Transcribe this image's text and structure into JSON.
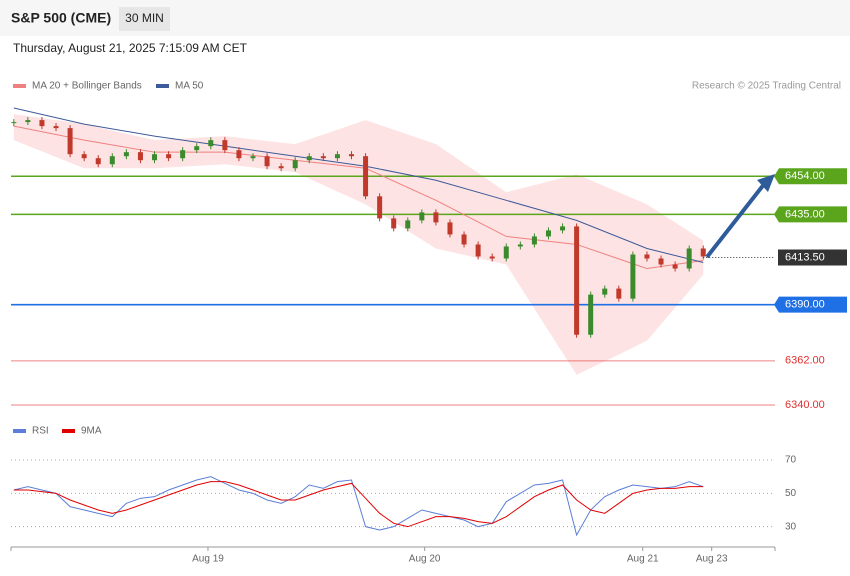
{
  "chart_data": {
    "type": "candlestick",
    "title": "S&P 500 (CME)",
    "interval": "30 MIN",
    "subtitle": "Thursday, August 21, 2025 7:15:09 AM CET",
    "credit": "Research © 2025 Trading Central",
    "x": [
      0,
      1,
      2,
      3,
      4,
      5,
      6,
      7,
      8,
      9,
      10,
      11,
      12,
      13,
      14,
      15,
      16,
      17,
      18,
      19,
      20,
      21,
      22,
      23,
      24,
      25,
      26,
      27,
      28,
      29,
      30,
      31,
      32,
      33,
      34,
      35,
      36,
      37,
      38,
      39,
      40,
      41,
      42,
      43,
      44,
      45,
      46,
      47,
      48,
      49
    ],
    "close": [
      6481,
      6482,
      6479,
      6478,
      6465,
      6463,
      6460,
      6464,
      6466,
      6462,
      6465,
      6463,
      6467,
      6469,
      6472,
      6467,
      6463,
      6464,
      6459,
      6458,
      6462,
      6464,
      6463,
      6465,
      6464,
      6444,
      6433,
      6428,
      6432,
      6436,
      6431,
      6425,
      6420,
      6414,
      6413,
      6419,
      6420,
      6424,
      6427,
      6429,
      6375,
      6395,
      6398,
      6393,
      6415,
      6413,
      6410,
      6408,
      6418,
      6414
    ],
    "up_color": "#3c8a2e",
    "down_color": "#c0392b",
    "xlim": [
      -0.2,
      54.1
    ],
    "xticks": [
      {
        "value": 13.8,
        "label": "Aug 19"
      },
      {
        "value": 29.2,
        "label": "Aug 20"
      },
      {
        "value": 44.7,
        "label": "Aug 21"
      },
      {
        "value": 49.6,
        "label": "Aug 23"
      }
    ],
    "ylim": [
      6332,
      6496
    ],
    "overlays": [
      {
        "name": "MA 20 + Bollinger Bands",
        "color": "#f08080",
        "band_color": "#fde3e3",
        "x": [
          0,
          5,
          10,
          15,
          20,
          25,
          30,
          35,
          40,
          45,
          49
        ],
        "values": [
          6479,
          6472,
          6466,
          6466,
          6462,
          6458,
          6442,
          6424,
          6420,
          6408,
          6412
        ],
        "upper": [
          6485,
          6480,
          6472,
          6474,
          6470,
          6482,
          6470,
          6446,
          6455,
          6440,
          6422
        ],
        "lower": [
          6472,
          6458,
          6458,
          6460,
          6456,
          6440,
          6418,
          6410,
          6355,
          6372,
          6405
        ]
      },
      {
        "name": "MA 50",
        "color": "#3d5a99",
        "x": [
          0,
          5,
          10,
          15,
          20,
          25,
          30,
          35,
          40,
          45,
          49
        ],
        "values": [
          6488,
          6480,
          6474,
          6469,
          6464,
          6459,
          6452,
          6442,
          6432,
          6418,
          6411
        ]
      }
    ],
    "levels": [
      {
        "value": 6454,
        "label": "6454.00",
        "color": "#5aa51c",
        "style": "box"
      },
      {
        "value": 6435,
        "label": "6435.00",
        "color": "#5aa51c",
        "style": "box"
      },
      {
        "value": 6413.5,
        "label": "6413.50",
        "color": "#333333",
        "style": "current"
      },
      {
        "value": 6390,
        "label": "6390.00",
        "color": "#1f6fe5",
        "style": "box"
      },
      {
        "value": 6362,
        "label": "6362.00",
        "color": "#e03030",
        "style": "text"
      },
      {
        "value": 6340,
        "label": "6340.00",
        "color": "#e03030",
        "style": "text"
      }
    ],
    "rsi": {
      "ylim": [
        19,
        73
      ],
      "yticks": [
        30,
        50,
        70
      ],
      "series": [
        {
          "name": "RSI",
          "color": "#5b7fd6",
          "values": [
            52,
            54,
            52,
            50,
            42,
            40,
            38,
            36,
            44,
            47,
            48,
            52,
            55,
            58,
            60,
            56,
            52,
            50,
            46,
            44,
            48,
            55,
            53,
            57,
            58,
            30,
            28,
            30,
            35,
            40,
            38,
            36,
            34,
            30,
            32,
            45,
            50,
            55,
            56,
            58,
            25,
            40,
            48,
            52,
            55,
            54,
            53,
            54,
            57,
            54
          ]
        },
        {
          "name": "9MA",
          "color": "#e00000",
          "values": [
            52,
            52,
            51,
            50,
            46,
            43,
            40,
            38,
            40,
            43,
            46,
            49,
            52,
            55,
            57,
            57,
            55,
            52,
            49,
            46,
            46,
            49,
            52,
            54,
            56,
            47,
            38,
            32,
            30,
            33,
            36,
            36,
            35,
            33,
            32,
            36,
            42,
            48,
            52,
            55,
            46,
            40,
            38,
            44,
            50,
            52,
            53,
            53,
            54,
            54
          ]
        }
      ]
    }
  }
}
